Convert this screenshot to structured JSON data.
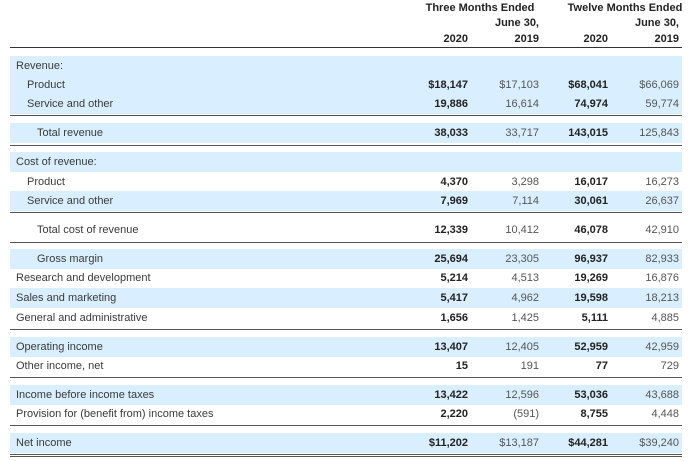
{
  "header": {
    "three_months_line1": "Three Months Ended",
    "three_months_line2": "June 30,",
    "twelve_months_line1": "Twelve Months Ended",
    "twelve_months_line2": "June 30,",
    "years": [
      "2020",
      "2019",
      "2020",
      "2019"
    ]
  },
  "rows": {
    "revenue_heading": "Revenue:",
    "product": {
      "label": "Product",
      "values": [
        "$18,147",
        "$17,103",
        "$68,041",
        "$66,069"
      ]
    },
    "service": {
      "label": "Service and other",
      "values": [
        "19,886",
        "16,614",
        "74,974",
        "59,774"
      ]
    },
    "total_revenue": {
      "label": "Total revenue",
      "values": [
        "38,033",
        "33,717",
        "143,015",
        "125,843"
      ]
    },
    "cost_heading": "Cost of revenue:",
    "cost_product": {
      "label": "Product",
      "values": [
        "4,370",
        "3,298",
        "16,017",
        "16,273"
      ]
    },
    "cost_service": {
      "label": "Service and other",
      "values": [
        "7,969",
        "7,114",
        "30,061",
        "26,637"
      ]
    },
    "total_cost": {
      "label": "Total cost of revenue",
      "values": [
        "12,339",
        "10,412",
        "46,078",
        "42,910"
      ]
    },
    "gross_margin": {
      "label": "Gross margin",
      "values": [
        "25,694",
        "23,305",
        "96,937",
        "82,933"
      ]
    },
    "rnd": {
      "label": "Research and development",
      "values": [
        "5,214",
        "4,513",
        "19,269",
        "16,876"
      ]
    },
    "sales": {
      "label": "Sales and marketing",
      "values": [
        "5,417",
        "4,962",
        "19,598",
        "18,213"
      ]
    },
    "ga": {
      "label": "General and administrative",
      "values": [
        "1,656",
        "1,425",
        "5,111",
        "4,885"
      ]
    },
    "operating_income": {
      "label": "Operating income",
      "values": [
        "13,407",
        "12,405",
        "52,959",
        "42,959"
      ]
    },
    "other_income": {
      "label": "Other income, net",
      "values": [
        "15",
        "191",
        "77",
        "729"
      ]
    },
    "income_before_tax": {
      "label": "Income before income taxes",
      "values": [
        "13,422",
        "12,596",
        "53,036",
        "43,688"
      ]
    },
    "provision": {
      "label": "Provision for (benefit from) income taxes",
      "values": [
        "2,220",
        "(591)",
        "8,755",
        "4,448"
      ]
    },
    "net_income": {
      "label": "Net income",
      "values": [
        "$11,202",
        "$13,187",
        "$44,281",
        "$39,240"
      ]
    }
  },
  "colors": {
    "band": "#d9efff",
    "rule": "#333333"
  }
}
